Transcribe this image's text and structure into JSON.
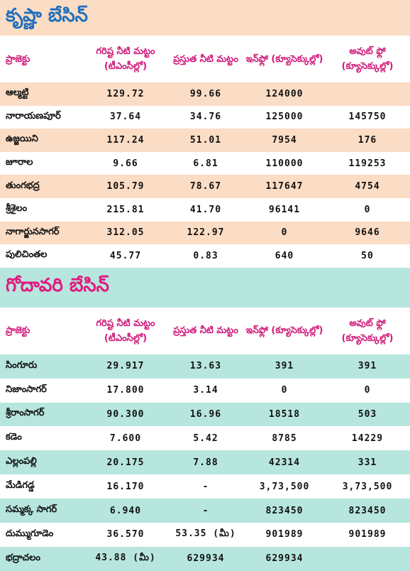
{
  "columns": [
    "ప్రాజెక్టు",
    "గరిష్ట నీటి మట్టం (టీఎంసీల్లో)",
    "ప్రస్తుత నీటి మట్టం",
    "ఇన్‌ఫ్లో (క్యూసెక్కుల్లో)",
    "అవుట్ ఫ్లో (క్యూసెక్కుల్లో)"
  ],
  "krishna": {
    "title": "కృష్ణా బేసిన్",
    "rows": [
      [
        "ఆల్మట్టి",
        "129.72",
        "99.66",
        "124000",
        ""
      ],
      [
        "నారాయణపూర్",
        "37.64",
        "34.76",
        "125000",
        "145750"
      ],
      [
        "ఉజ్జయిని",
        "117.24",
        "51.01",
        "7954",
        "176"
      ],
      [
        "జూరాల",
        "9.66",
        "6.81",
        "110000",
        "119253"
      ],
      [
        "తుంగభద్ర",
        "105.79",
        "78.67",
        "117647",
        "4754"
      ],
      [
        "శ్రీశైలం",
        "215.81",
        "41.70",
        "96141",
        "0"
      ],
      [
        "నాగార్జునసాగర్",
        "312.05",
        "122.97",
        "0",
        "9646"
      ],
      [
        "పులిచింతల",
        "45.77",
        "0.83",
        "640",
        "50"
      ]
    ]
  },
  "godavari": {
    "title": "గోదావరి బేసిన్",
    "rows": [
      [
        "సింగూరు",
        "29.917",
        "13.63",
        "391",
        "391"
      ],
      [
        "నిజాంసాగర్",
        "17.800",
        "3.14",
        "0",
        "0"
      ],
      [
        "శ్రీరాంసాగర్",
        "90.300",
        "16.96",
        "18518",
        "503"
      ],
      [
        "కడెం",
        "7.600",
        "5.42",
        "8785",
        "14229"
      ],
      [
        "ఎల్లంపల్లి",
        "20.175",
        "7.88",
        "42314",
        "331"
      ],
      [
        "మేడిగడ్డ",
        "16.170",
        "-",
        "3,73,500",
        "3,73,500"
      ],
      [
        "సమ్మక్క సాగర్",
        "6.940",
        "-",
        "823450",
        "823450"
      ],
      [
        "దుమ్ముగూడెం",
        "36.570",
        "53.35 (మీ)",
        "901989",
        "901989"
      ],
      [
        "భద్రాచలం",
        "43.88 (మీ)",
        "629934",
        "629934",
        ""
      ]
    ]
  }
}
